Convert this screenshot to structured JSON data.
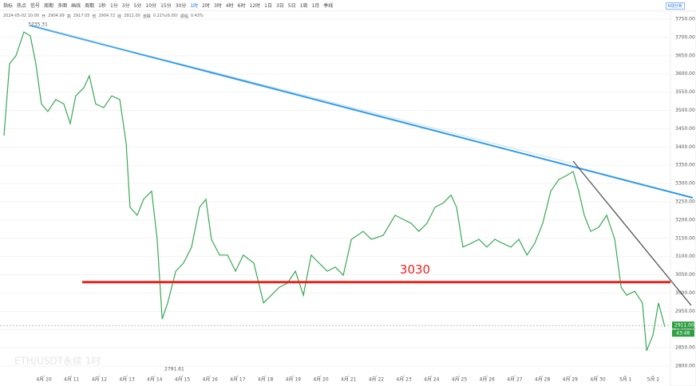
{
  "toolbar": {
    "items": [
      "指标",
      "热点",
      "信号",
      "周期",
      "多图",
      "画线",
      "周期",
      "1秒",
      "1分",
      "3分",
      "5分",
      "10分",
      "15分",
      "30分",
      "1时",
      "2时",
      "3时",
      "4时",
      "6时",
      "12时",
      "1日",
      "3日",
      "5日",
      "1周",
      "1月",
      "季线"
    ],
    "active": 14
  },
  "info": [
    "2024-05-02 10:00",
    "开",
    "2904.99",
    "高",
    "2917.05",
    "低",
    "2904.72",
    "收",
    "2911.00",
    "涨跌",
    "0.21%(6.00)",
    "振幅",
    "0.43%"
  ],
  "panel_button": "K线分析",
  "chart_data": {
    "type": "line",
    "title": "ETH/USDT永续 1时",
    "x": [
      -1.44,
      -1.24,
      -1.01,
      -0.72,
      -0.49,
      -0.29,
      -0.09,
      0.14,
      0.43,
      0.72,
      0.95,
      1.15,
      1.44,
      1.64,
      1.87,
      2.16,
      2.45,
      2.74,
      2.97,
      3.11,
      3.37,
      3.6,
      3.89,
      4.09,
      4.27,
      4.47,
      4.76,
      5.04,
      5.33,
      5.62,
      5.85,
      6.05,
      6.34,
      6.63,
      6.92,
      7.2,
      7.58,
      7.93,
      8.21,
      8.5,
      8.79,
      9.08,
      9.37,
      9.65,
      9.94,
      10.23,
      10.52,
      10.81,
      11.1,
      11.53,
      11.82,
      12.25,
      12.68,
      12.97,
      13.26,
      13.54,
      13.83,
      14.12,
      14.41,
      14.7,
      14.9,
      15.13,
      15.42,
      15.71,
      15.99,
      16.28,
      16.57,
      16.86,
      17.15,
      17.44,
      17.72,
      18.01,
      18.3,
      18.59,
      18.88,
      19.11,
      19.31,
      19.51,
      19.74,
      20.03,
      20.32,
      20.61,
      20.84,
      21.04,
      21.33,
      21.61,
      21.76,
      21.99,
      22.19,
      22.42
    ],
    "series": [
      {
        "name": "ETH/USDT永续",
        "color": "#3aa856",
        "values": [
          3431,
          3628,
          3650,
          3715,
          3704,
          3628,
          3518,
          3497,
          3530,
          3518,
          3464,
          3540,
          3562,
          3595,
          3518,
          3508,
          3540,
          3530,
          3409,
          3235,
          3213,
          3257,
          3279,
          3147,
          2929,
          2973,
          3060,
          3082,
          3126,
          3235,
          3257,
          3147,
          3104,
          3104,
          3060,
          3104,
          3082,
          2973,
          2994,
          3016,
          3027,
          3060,
          2994,
          3104,
          3082,
          3060,
          3071,
          3049,
          3147,
          3169,
          3147,
          3158,
          3213,
          3202,
          3191,
          3169,
          3191,
          3235,
          3246,
          3268,
          3235,
          3126,
          3136,
          3147,
          3126,
          3147,
          3136,
          3126,
          3147,
          3104,
          3136,
          3191,
          3279,
          3311,
          3322,
          3333,
          3279,
          3213,
          3169,
          3180,
          3213,
          3147,
          3016,
          2994,
          3005,
          2973,
          2842,
          2885,
          2973,
          2907
        ]
      }
    ],
    "xlim": [
      -1.585,
      22.622
    ],
    "ylim": [
      2776,
      3772
    ],
    "xticks": [
      {
        "value": 0,
        "label": "4月 10"
      },
      {
        "value": 1,
        "label": "4月 11"
      },
      {
        "value": 2,
        "label": "4月 12"
      },
      {
        "value": 3,
        "label": "4月 13"
      },
      {
        "value": 4,
        "label": "4月 14"
      },
      {
        "value": 5,
        "label": "4月 15"
      },
      {
        "value": 6,
        "label": "4月 16"
      },
      {
        "value": 7,
        "label": "4月 17"
      },
      {
        "value": 8,
        "label": "4月 18"
      },
      {
        "value": 9,
        "label": "4月 19"
      },
      {
        "value": 10,
        "label": "4月 20"
      },
      {
        "value": 11,
        "label": "4月 21"
      },
      {
        "value": 12,
        "label": "4月 22"
      },
      {
        "value": 13,
        "label": "4月 23"
      },
      {
        "value": 14,
        "label": "4月 24"
      },
      {
        "value": 15,
        "label": "4月 25"
      },
      {
        "value": 16,
        "label": "4月 26"
      },
      {
        "value": 17,
        "label": "4月 27"
      },
      {
        "value": 18,
        "label": "4月 28"
      },
      {
        "value": 19,
        "label": "4月 29"
      },
      {
        "value": 20,
        "label": "4月 30"
      },
      {
        "value": 21,
        "label": "5月 1"
      },
      {
        "value": 22,
        "label": "5月 2"
      }
    ],
    "yticks": [
      {
        "value": 2800,
        "label": "2800.00"
      },
      {
        "value": 2850,
        "label": "2850.00"
      },
      {
        "value": 2900,
        "label": "2900.00"
      },
      {
        "value": 2950,
        "label": "2950.00"
      },
      {
        "value": 3000,
        "label": "3000.00"
      },
      {
        "value": 3050,
        "label": "3050.00"
      },
      {
        "value": 3100,
        "label": "3100.00"
      },
      {
        "value": 3150,
        "label": "3150.00"
      },
      {
        "value": 3200,
        "label": "3200.00"
      },
      {
        "value": 3250,
        "label": "3250.00"
      },
      {
        "value": 3300,
        "label": "3300.00"
      },
      {
        "value": 3350,
        "label": "3350.00"
      },
      {
        "value": 3400,
        "label": "3400.00"
      },
      {
        "value": 3450,
        "label": "3450.00"
      },
      {
        "value": 3500,
        "label": "3500.00"
      },
      {
        "value": 3550,
        "label": "3550.00"
      },
      {
        "value": 3600,
        "label": "3600.00"
      },
      {
        "value": 3650,
        "label": "3650.00"
      },
      {
        "value": 3700,
        "label": "3700.00"
      },
      {
        "value": 3750,
        "label": "3750.00"
      }
    ],
    "level": 3030,
    "level_color": "#e8231c",
    "high": 3735.31,
    "low": 2791.61,
    "last_price": {
      "value": 2911,
      "label": "2911.00"
    },
    "countdown": "43:48"
  }
}
